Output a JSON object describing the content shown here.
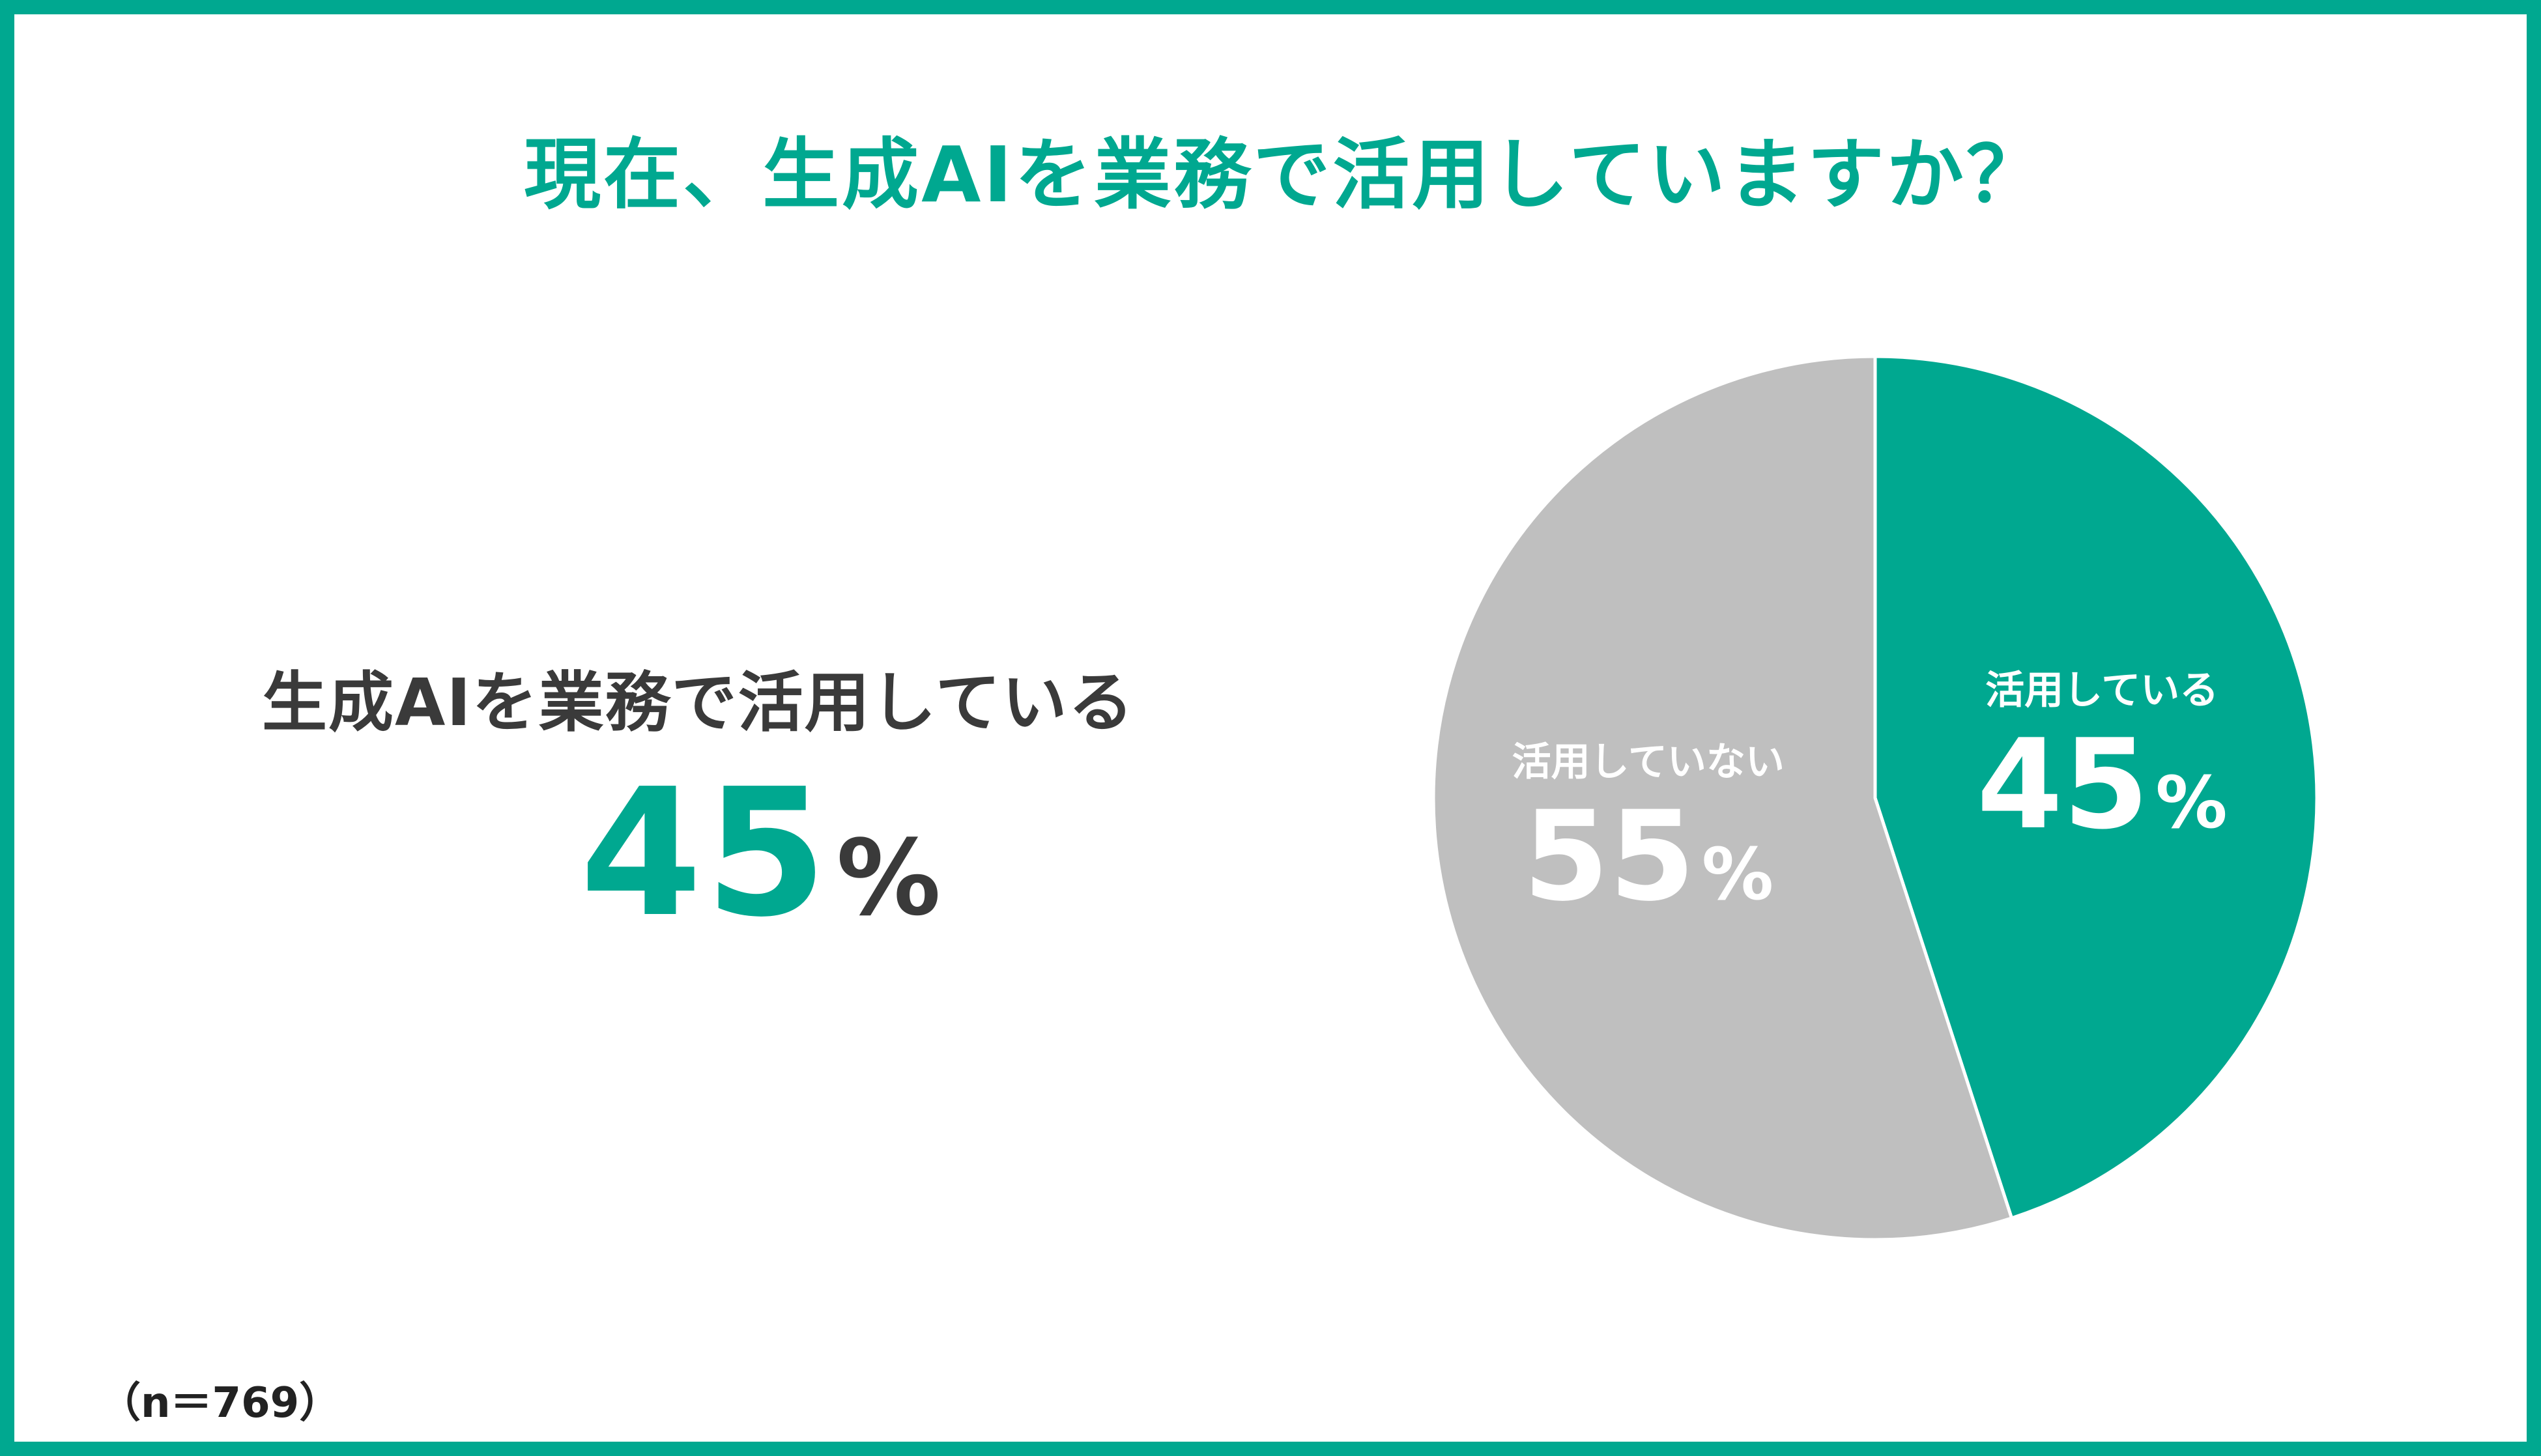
{
  "title": "現在、生成AIを業務で活用していますか？",
  "highlight": {
    "label": "生成AIを業務で活用している",
    "value": "45",
    "unit": "%"
  },
  "sample_size": "（n＝769）",
  "colors": {
    "accent": "#00a890",
    "secondary": "#bfbfbf",
    "text_dark": "#3a3a3a"
  },
  "chart_data": {
    "type": "pie",
    "slices": [
      {
        "label": "活用している",
        "value": 45,
        "display": "45",
        "unit": "%",
        "color": "#00a890"
      },
      {
        "label": "活用していない",
        "value": 55,
        "display": "55",
        "unit": "%",
        "color": "#bfbfbf"
      }
    ]
  }
}
